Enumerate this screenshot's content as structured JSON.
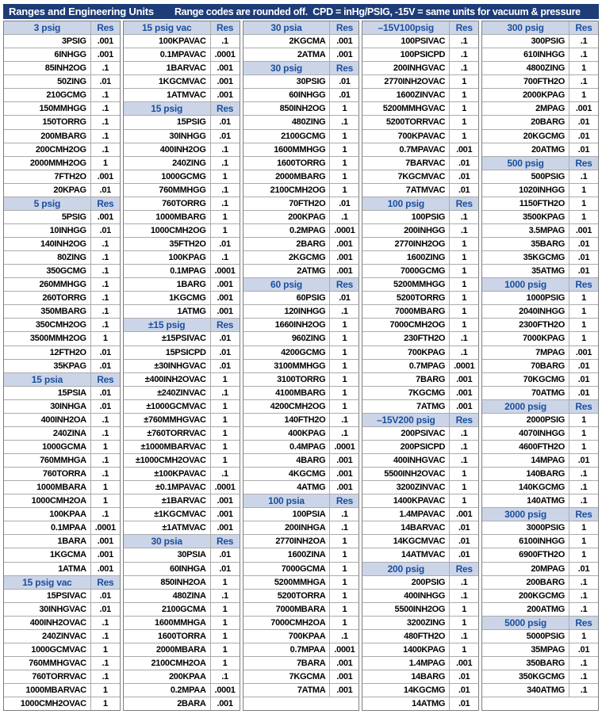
{
  "banner": {
    "title": "Ranges and Engineering Units",
    "note": "Range codes are rounded off.  CPD = inHg/PSIG, -15V = same units for vacuum & pressure"
  },
  "colors": {
    "banner_bg": "#1d3c78",
    "banner_text": "#ffffff",
    "section_header_bg": "#ccd5e8",
    "section_header_text": "#1a4f9e",
    "data_text": "#000000",
    "grid_border": "#ababab"
  },
  "table": {
    "res_header_label": "Res",
    "columns": [
      {
        "rows": [
          [
            "3 psig",
            "Res",
            "head"
          ],
          [
            "3PSIG",
            ".001"
          ],
          [
            "6INHGG",
            ".001"
          ],
          [
            "85INH2OG",
            ".1"
          ],
          [
            "50ZING",
            ".01"
          ],
          [
            "210GCMG",
            ".1"
          ],
          [
            "150MMHGG",
            ".1"
          ],
          [
            "150TORRG",
            ".1"
          ],
          [
            "200MBARG",
            ".1"
          ],
          [
            "200CMH2OG",
            ".1"
          ],
          [
            "2000MMH2OG",
            "1"
          ],
          [
            "7FTH2O",
            ".001"
          ],
          [
            "20KPAG",
            ".01"
          ],
          [
            "5 psig",
            "Res",
            "head"
          ],
          [
            "5PSIG",
            ".001"
          ],
          [
            "10INHGG",
            ".01"
          ],
          [
            "140INH2OG",
            ".1"
          ],
          [
            "80ZING",
            ".1"
          ],
          [
            "350GCMG",
            ".1"
          ],
          [
            "260MMHGG",
            ".1"
          ],
          [
            "260TORRG",
            ".1"
          ],
          [
            "350MBARG",
            ".1"
          ],
          [
            "350CMH2OG",
            ".1"
          ],
          [
            "3500MMH2OG",
            "1"
          ],
          [
            "12FTH2O",
            ".01"
          ],
          [
            "35KPAG",
            ".01"
          ],
          [
            "15 psia",
            "Res",
            "head"
          ],
          [
            "15PSIA",
            ".01"
          ],
          [
            "30INHGA",
            ".01"
          ],
          [
            "400INH2OA",
            ".1"
          ],
          [
            "240ZINA",
            ".1"
          ],
          [
            "1000GCMA",
            "1"
          ],
          [
            "760MMHGA",
            ".1"
          ],
          [
            "760TORRA",
            ".1"
          ],
          [
            "1000MBARA",
            "1"
          ],
          [
            "1000CMH2OA",
            "1"
          ],
          [
            "100KPAA",
            ".1"
          ],
          [
            "0.1MPAA",
            ".0001"
          ],
          [
            "1BARA",
            ".001"
          ],
          [
            "1KGCMA",
            ".001"
          ],
          [
            "1ATMA",
            ".001"
          ],
          [
            "15 psig vac",
            "Res",
            "head"
          ],
          [
            "15PSIVAC",
            ".01"
          ],
          [
            "30INHGVAC",
            ".01"
          ],
          [
            "400INH2OVAC",
            ".1"
          ],
          [
            "240ZINVAC",
            ".1"
          ],
          [
            "1000GCMVAC",
            "1"
          ],
          [
            "760MMHGVAC",
            ".1"
          ],
          [
            "760TORRVAC",
            ".1"
          ],
          [
            "1000MBARVAC",
            "1"
          ],
          [
            "1000CMH2OVAC",
            "1"
          ]
        ]
      },
      {
        "rows": [
          [
            "15 psig vac",
            "Res",
            "head"
          ],
          [
            "100KPAVAC",
            ".1"
          ],
          [
            "0.1MPAVAC",
            ".0001"
          ],
          [
            "1BARVAC",
            ".001"
          ],
          [
            "1KGCMVAC",
            ".001"
          ],
          [
            "1ATMVAC",
            ".001"
          ],
          [
            "15 psig",
            "Res",
            "head"
          ],
          [
            "15PSIG",
            ".01"
          ],
          [
            "30INHGG",
            ".01"
          ],
          [
            "400INH2OG",
            ".1"
          ],
          [
            "240ZING",
            ".1"
          ],
          [
            "1000GCMG",
            "1"
          ],
          [
            "760MMHGG",
            ".1"
          ],
          [
            "760TORRG",
            ".1"
          ],
          [
            "1000MBARG",
            "1"
          ],
          [
            "1000CMH2OG",
            "1"
          ],
          [
            "35FTH2O",
            ".01"
          ],
          [
            "100KPAG",
            ".1"
          ],
          [
            "0.1MPAG",
            ".0001"
          ],
          [
            "1BARG",
            ".001"
          ],
          [
            "1KGCMG",
            ".001"
          ],
          [
            "1ATMG",
            ".001"
          ],
          [
            "±15 psig",
            "Res",
            "head"
          ],
          [
            "±15PSIVAC",
            ".01"
          ],
          [
            "15PSICPD",
            ".01"
          ],
          [
            "±30INHGVAC",
            ".01"
          ],
          [
            "±400INH2OVAC",
            "1"
          ],
          [
            "±240ZINVAC",
            ".1"
          ],
          [
            "±1000GCMVAC",
            "1"
          ],
          [
            "±760MMHGVAC",
            "1"
          ],
          [
            "±760TORRVAC",
            "1"
          ],
          [
            "±1000MBARVAC",
            "1"
          ],
          [
            "±1000CMH2OVAC",
            "1"
          ],
          [
            "±100KPAVAC",
            ".1"
          ],
          [
            "±0.1MPAVAC",
            ".0001"
          ],
          [
            "±1BARVAC",
            ".001"
          ],
          [
            "±1KGCMVAC",
            ".001"
          ],
          [
            "±1ATMVAC",
            ".001"
          ],
          [
            "30 psia",
            "Res",
            "head"
          ],
          [
            "30PSIA",
            ".01"
          ],
          [
            "60INHGA",
            ".01"
          ],
          [
            "850INH2OA",
            "1"
          ],
          [
            "480ZINA",
            ".1"
          ],
          [
            "2100GCMA",
            "1"
          ],
          [
            "1600MMHGA",
            "1"
          ],
          [
            "1600TORRA",
            "1"
          ],
          [
            "2000MBARA",
            "1"
          ],
          [
            "2100CMH2OA",
            "1"
          ],
          [
            "200KPAA",
            ".1"
          ],
          [
            "0.2MPAA",
            ".0001"
          ],
          [
            "2BARA",
            ".001"
          ]
        ]
      },
      {
        "rows": [
          [
            "30 psia",
            "Res",
            "head"
          ],
          [
            "2KGCMA",
            ".001"
          ],
          [
            "2ATMA",
            ".001"
          ],
          [
            "30 psig",
            "Res",
            "head"
          ],
          [
            "30PSIG",
            ".01"
          ],
          [
            "60INHGG",
            ".01"
          ],
          [
            "850INH2OG",
            "1"
          ],
          [
            "480ZING",
            ".1"
          ],
          [
            "2100GCMG",
            "1"
          ],
          [
            "1600MMHGG",
            "1"
          ],
          [
            "1600TORRG",
            "1"
          ],
          [
            "2000MBARG",
            "1"
          ],
          [
            "2100CMH2OG",
            "1"
          ],
          [
            "70FTH2O",
            ".01"
          ],
          [
            "200KPAG",
            ".1"
          ],
          [
            "0.2MPAG",
            ".0001"
          ],
          [
            "2BARG",
            ".001"
          ],
          [
            "2KGCMG",
            ".001"
          ],
          [
            "2ATMG",
            ".001"
          ],
          [
            "60 psig",
            "Res",
            "head"
          ],
          [
            "60PSIG",
            ".01"
          ],
          [
            "120INHGG",
            ".1"
          ],
          [
            "1660INH2OG",
            "1"
          ],
          [
            "960ZING",
            "1"
          ],
          [
            "4200GCMG",
            "1"
          ],
          [
            "3100MMHGG",
            "1"
          ],
          [
            "3100TORRG",
            "1"
          ],
          [
            "4100MBARG",
            "1"
          ],
          [
            "4200CMH2OG",
            "1"
          ],
          [
            "140FTH2O",
            ".1"
          ],
          [
            "400KPAG",
            ".1"
          ],
          [
            "0.4MPAG",
            ".0001"
          ],
          [
            "4BARG",
            ".001"
          ],
          [
            "4KGCMG",
            ".001"
          ],
          [
            "4ATMG",
            ".001"
          ],
          [
            "100 psia",
            "Res",
            "head"
          ],
          [
            "100PSIA",
            ".1"
          ],
          [
            "200INHGA",
            ".1"
          ],
          [
            "2770INH2OA",
            "1"
          ],
          [
            "1600ZINA",
            "1"
          ],
          [
            "7000GCMA",
            "1"
          ],
          [
            "5200MMHGA",
            "1"
          ],
          [
            "5200TORRA",
            "1"
          ],
          [
            "7000MBARA",
            "1"
          ],
          [
            "7000CMH2OA",
            "1"
          ],
          [
            "700KPAA",
            ".1"
          ],
          [
            "0.7MPAA",
            ".0001"
          ],
          [
            "7BARA",
            ".001"
          ],
          [
            "7KGCMA",
            ".001"
          ],
          [
            "7ATMA",
            ".001"
          ],
          [
            "",
            ""
          ]
        ]
      },
      {
        "rows": [
          [
            "–15V100psig",
            "Res",
            "head"
          ],
          [
            "100PSIVAC",
            ".1"
          ],
          [
            "100PSICPD",
            ".1"
          ],
          [
            "200INHGVAC",
            ".1"
          ],
          [
            "2770INH2OVAC",
            "1"
          ],
          [
            "1600ZINVAC",
            "1"
          ],
          [
            "5200MMHGVAC",
            "1"
          ],
          [
            "5200TORRVAC",
            "1"
          ],
          [
            "700KPAVAC",
            "1"
          ],
          [
            "0.7MPAVAC",
            ".001"
          ],
          [
            "7BARVAC",
            ".01"
          ],
          [
            "7KGCMVAC",
            ".01"
          ],
          [
            "7ATMVAC",
            ".01"
          ],
          [
            "100 psig",
            "Res",
            "head"
          ],
          [
            "100PSIG",
            ".1"
          ],
          [
            "200INHGG",
            ".1"
          ],
          [
            "2770INH2OG",
            "1"
          ],
          [
            "1600ZING",
            "1"
          ],
          [
            "7000GCMG",
            "1"
          ],
          [
            "5200MMHGG",
            "1"
          ],
          [
            "5200TORRG",
            "1"
          ],
          [
            "7000MBARG",
            "1"
          ],
          [
            "7000CMH2OG",
            "1"
          ],
          [
            "230FTH2O",
            ".1"
          ],
          [
            "700KPAG",
            ".1"
          ],
          [
            "0.7MPAG",
            ".0001"
          ],
          [
            "7BARG",
            ".001"
          ],
          [
            "7KGCMG",
            ".001"
          ],
          [
            "7ATMG",
            ".001"
          ],
          [
            "–15V200 psig",
            "Res",
            "head"
          ],
          [
            "200PSIVAC",
            ".1"
          ],
          [
            "200PSICPD",
            ".1"
          ],
          [
            "400INHGVAC",
            ".1"
          ],
          [
            "5500INH2OVAC",
            "1"
          ],
          [
            "3200ZINVAC",
            "1"
          ],
          [
            "1400KPAVAC",
            "1"
          ],
          [
            "1.4MPAVAC",
            ".001"
          ],
          [
            "14BARVAC",
            ".01"
          ],
          [
            "14KGCMVAC",
            ".01"
          ],
          [
            "14ATMVAC",
            ".01"
          ],
          [
            "200 psig",
            "Res",
            "head"
          ],
          [
            "200PSIG",
            ".1"
          ],
          [
            "400INHGG",
            ".1"
          ],
          [
            "5500INH2OG",
            "1"
          ],
          [
            "3200ZING",
            "1"
          ],
          [
            "480FTH2O",
            ".1"
          ],
          [
            "1400KPAG",
            "1"
          ],
          [
            "1.4MPAG",
            ".001"
          ],
          [
            "14BARG",
            ".01"
          ],
          [
            "14KGCMG",
            ".01"
          ],
          [
            "14ATMG",
            ".01"
          ]
        ]
      },
      {
        "rows": [
          [
            "300 psig",
            "Res",
            "head"
          ],
          [
            "300PSIG",
            ".1"
          ],
          [
            "610INHGG",
            ".1"
          ],
          [
            "4800ZING",
            "1"
          ],
          [
            "700FTH2O",
            ".1"
          ],
          [
            "2000KPAG",
            "1"
          ],
          [
            "2MPAG",
            ".001"
          ],
          [
            "20BARG",
            ".01"
          ],
          [
            "20KGCMG",
            ".01"
          ],
          [
            "20ATMG",
            ".01"
          ],
          [
            "500 psig",
            "Res",
            "head"
          ],
          [
            "500PSIG",
            ".1"
          ],
          [
            "1020INHGG",
            "1"
          ],
          [
            "1150FTH2O",
            "1"
          ],
          [
            "3500KPAG",
            "1"
          ],
          [
            "3.5MPAG",
            ".001"
          ],
          [
            "35BARG",
            ".01"
          ],
          [
            "35KGCMG",
            ".01"
          ],
          [
            "35ATMG",
            ".01"
          ],
          [
            "1000 psig",
            "Res",
            "head"
          ],
          [
            "1000PSIG",
            "1"
          ],
          [
            "2040INHGG",
            "1"
          ],
          [
            "2300FTH2O",
            "1"
          ],
          [
            "7000KPAG",
            "1"
          ],
          [
            "7MPAG",
            ".001"
          ],
          [
            "70BARG",
            ".01"
          ],
          [
            "70KGCMG",
            ".01"
          ],
          [
            "70ATMG",
            ".01"
          ],
          [
            "2000 psig",
            "Res",
            "head"
          ],
          [
            "2000PSIG",
            "1"
          ],
          [
            "4070INHGG",
            "1"
          ],
          [
            "4600FTH2O",
            "1"
          ],
          [
            "14MPAG",
            ".01"
          ],
          [
            "140BARG",
            ".1"
          ],
          [
            "140KGCMG",
            ".1"
          ],
          [
            "140ATMG",
            ".1"
          ],
          [
            "3000 psig",
            "Res",
            "head"
          ],
          [
            "3000PSIG",
            "1"
          ],
          [
            "6100INHGG",
            "1"
          ],
          [
            "6900FTH2O",
            "1"
          ],
          [
            "20MPAG",
            ".01"
          ],
          [
            "200BARG",
            ".1"
          ],
          [
            "200KGCMG",
            ".1"
          ],
          [
            "200ATMG",
            ".1"
          ],
          [
            "5000 psig",
            "Res",
            "head"
          ],
          [
            "5000PSIG",
            "1"
          ],
          [
            "35MPAG",
            ".01"
          ],
          [
            "350BARG",
            ".1"
          ],
          [
            "350KGCMG",
            ".1"
          ],
          [
            "340ATMG",
            ".1"
          ],
          [
            "",
            ""
          ]
        ]
      }
    ]
  }
}
